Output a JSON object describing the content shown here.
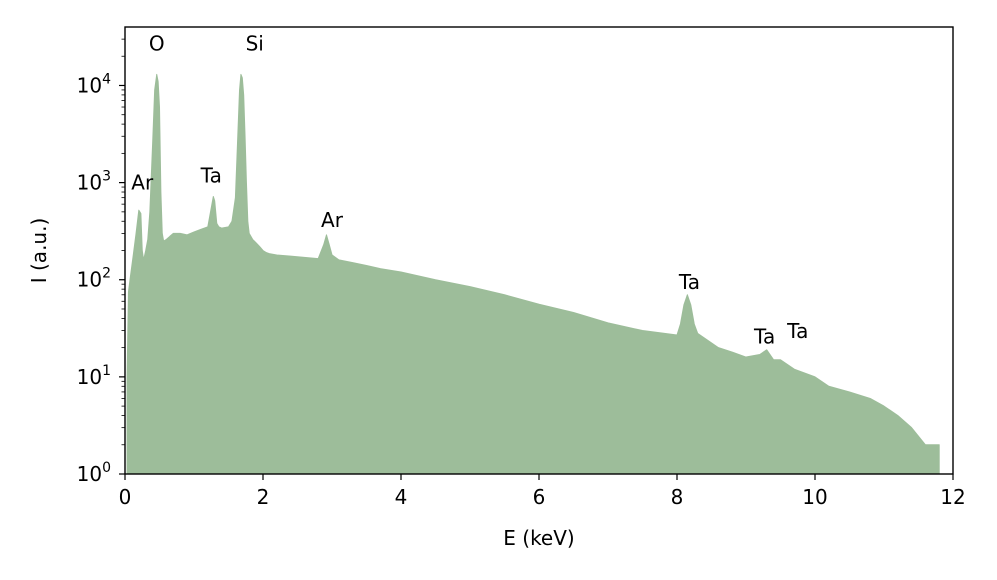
{
  "chart_data": {
    "type": "area",
    "xlabel": "E (keV)",
    "ylabel": "I (a.u.)",
    "xlim": [
      0,
      12
    ],
    "ylim": [
      1,
      40000
    ],
    "yscale": "log",
    "grid": false,
    "fill_color": "#9dbd9a",
    "x_ticks": [
      0,
      2,
      4,
      6,
      8,
      10,
      12
    ],
    "x_tick_labels": [
      "0",
      "2",
      "4",
      "6",
      "8",
      "10",
      "12"
    ],
    "y_ticks": [
      1,
      10,
      100,
      1000,
      10000
    ],
    "y_tick_labels": [
      {
        "base": "10",
        "exp": "0"
      },
      {
        "base": "10",
        "exp": "1"
      },
      {
        "base": "10",
        "exp": "2"
      },
      {
        "base": "10",
        "exp": "3"
      },
      {
        "base": "10",
        "exp": "4"
      }
    ],
    "series": [
      {
        "x": [
          0.03,
          0.05,
          0.08,
          0.12,
          0.16,
          0.2,
          0.23,
          0.25,
          0.27,
          0.3,
          0.33,
          0.36,
          0.4,
          0.43,
          0.46,
          0.48,
          0.5,
          0.52,
          0.54,
          0.56,
          0.6,
          0.65,
          0.7,
          0.8,
          0.9,
          1.0,
          1.1,
          1.2,
          1.25,
          1.28,
          1.3,
          1.33,
          1.36,
          1.4,
          1.5,
          1.55,
          1.6,
          1.63,
          1.66,
          1.68,
          1.7,
          1.72,
          1.74,
          1.76,
          1.78,
          1.8,
          1.85,
          1.9,
          1.95,
          2.0,
          2.05,
          2.1,
          2.2,
          2.4,
          2.6,
          2.8,
          2.88,
          2.92,
          2.96,
          3.0,
          3.1,
          3.3,
          3.5,
          3.7,
          4.0,
          4.5,
          5.0,
          5.5,
          6.0,
          6.5,
          7.0,
          7.5,
          8.0,
          8.05,
          8.1,
          8.15,
          8.2,
          8.25,
          8.3,
          8.4,
          8.6,
          8.8,
          9.0,
          9.2,
          9.3,
          9.4,
          9.5,
          9.7,
          10.0,
          10.2,
          10.5,
          10.8,
          11.0,
          11.2,
          11.4,
          11.6,
          11.8
        ],
        "y": [
          10,
          75,
          110,
          180,
          300,
          520,
          480,
          200,
          160,
          200,
          260,
          500,
          2500,
          9000,
          13000,
          11000,
          6000,
          800,
          300,
          250,
          260,
          280,
          300,
          300,
          290,
          310,
          330,
          350,
          550,
          720,
          650,
          380,
          350,
          340,
          350,
          400,
          700,
          2500,
          9000,
          13000,
          12000,
          8000,
          3000,
          1000,
          400,
          300,
          260,
          240,
          220,
          200,
          190,
          185,
          180,
          175,
          170,
          165,
          230,
          290,
          230,
          180,
          160,
          150,
          140,
          130,
          120,
          100,
          85,
          70,
          56,
          46,
          36,
          30,
          27,
          35,
          55,
          70,
          55,
          35,
          28,
          25,
          20,
          18,
          16,
          17,
          19,
          15,
          15,
          12,
          10,
          8,
          7,
          6,
          5,
          4,
          3,
          2,
          2
        ]
      }
    ],
    "annotations": [
      {
        "text": "O",
        "x": 0.46,
        "y": 23000
      },
      {
        "text": "Si",
        "x": 1.88,
        "y": 23000
      },
      {
        "text": "Ar",
        "x": 0.25,
        "y": 850
      },
      {
        "text": "Ta",
        "x": 1.25,
        "y": 1000
      },
      {
        "text": "Ar",
        "x": 3.0,
        "y": 350
      },
      {
        "text": "Ta",
        "x": 8.18,
        "y": 80
      },
      {
        "text": "Ta",
        "x": 9.27,
        "y": 22
      },
      {
        "text": "Ta",
        "x": 9.75,
        "y": 25
      }
    ]
  }
}
